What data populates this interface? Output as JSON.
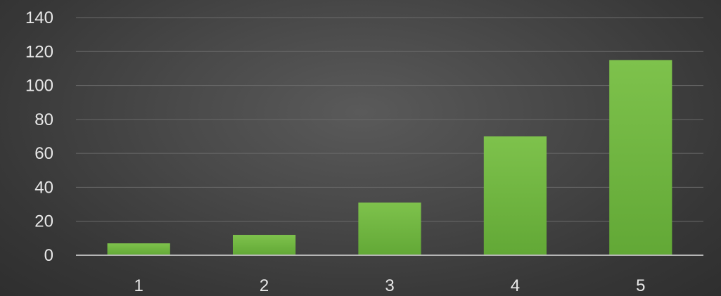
{
  "chart_data": {
    "type": "bar",
    "categories": [
      "1",
      "2",
      "3",
      "4",
      "5"
    ],
    "values": [
      7,
      12,
      31,
      70,
      115
    ],
    "title": "",
    "xlabel": "",
    "ylabel": "",
    "ylim": [
      0,
      140
    ],
    "yticks": [
      "0",
      "20",
      "40",
      "60",
      "80",
      "100",
      "120",
      "140"
    ],
    "grid": true,
    "legend": "none",
    "colors": {
      "bar": "#6db33f",
      "bar_light": "#7cc24a",
      "background": "#3c3c3c",
      "text": "#e8e8e8"
    }
  }
}
